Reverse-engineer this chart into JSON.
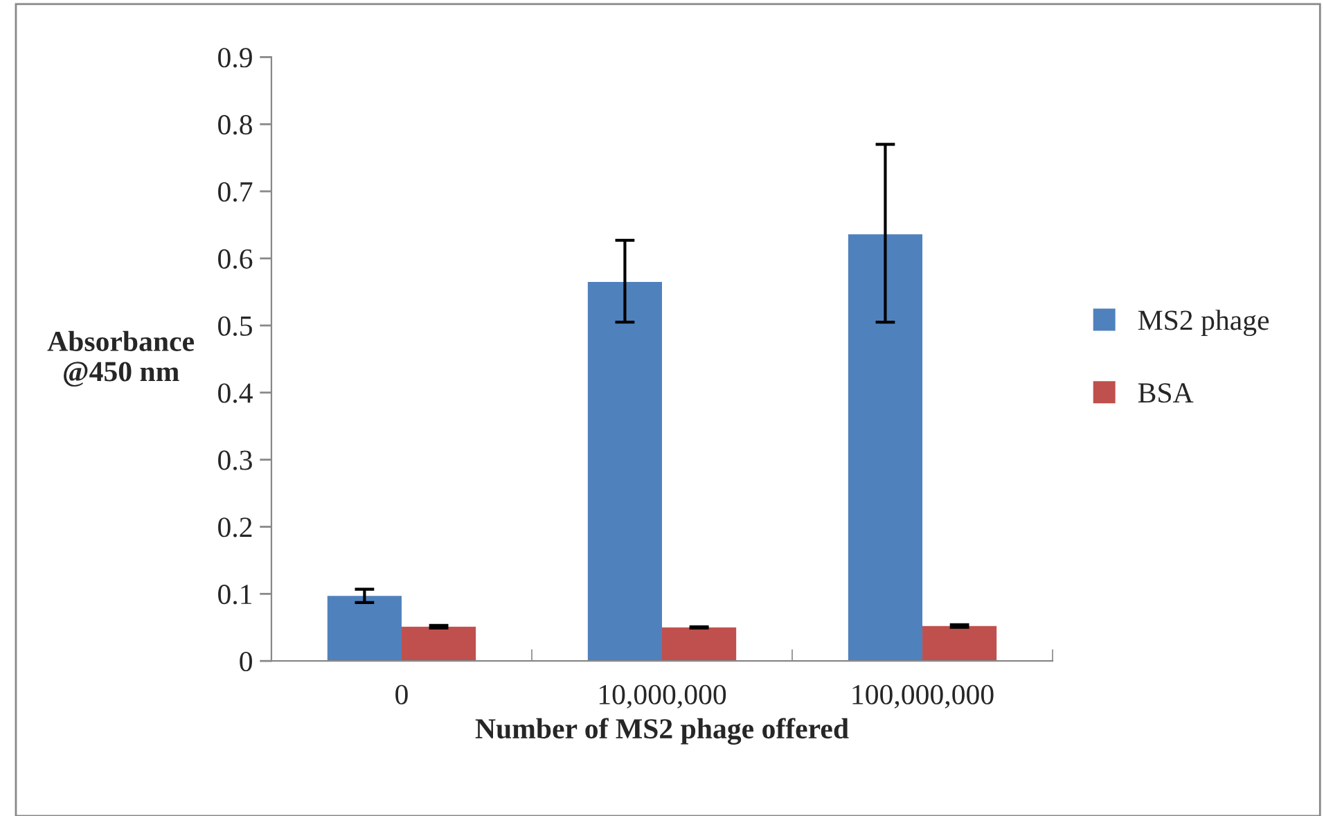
{
  "chart_data": {
    "type": "bar",
    "xlabel": "Number of MS2 phage offered",
    "ylabel": "Absorbance\n@450 nm",
    "categories": [
      "0",
      "10,000,000",
      "100,000,000"
    ],
    "series": [
      {
        "name": "MS2 phage",
        "color": "#4f81bd",
        "values": [
          0.097,
          0.565,
          0.636
        ],
        "errors": [
          [
            0.087,
            0.107
          ],
          [
            0.505,
            0.627
          ],
          [
            0.505,
            0.77
          ]
        ]
      },
      {
        "name": "BSA",
        "color": "#c0504d",
        "values": [
          0.051,
          0.05,
          0.052
        ],
        "errors": [
          0.002,
          0.001,
          0.002
        ]
      }
    ],
    "ylim": [
      0,
      0.9
    ],
    "yticks": [
      0,
      0.1,
      0.2,
      0.3,
      0.4,
      0.5,
      0.6,
      0.7,
      0.8,
      0.9
    ],
    "grid": false,
    "legend": "right"
  }
}
